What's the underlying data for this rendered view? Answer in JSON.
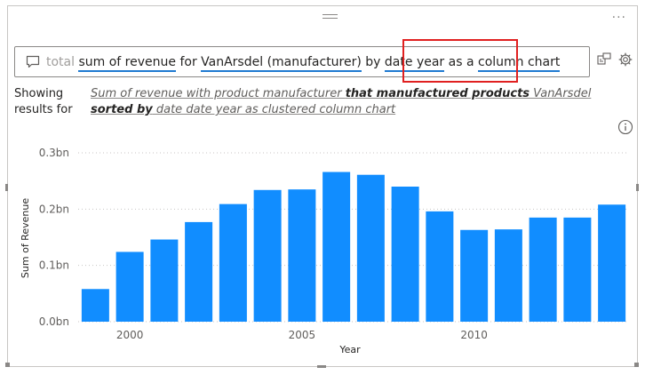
{
  "qa": {
    "segments": [
      {
        "text": "total",
        "style": "muted"
      },
      {
        "text": "sum of revenue",
        "style": "token"
      },
      {
        "text": "for",
        "style": "plain"
      },
      {
        "text": "VanArsdel (manufacturer)",
        "style": "token"
      },
      {
        "text": "by",
        "style": "plain"
      },
      {
        "text": "date year",
        "style": "token"
      },
      {
        "text": "as a",
        "style": "plain"
      },
      {
        "text": "column chart",
        "style": "token"
      }
    ]
  },
  "showing": {
    "label": "Showing results for",
    "restatement_parts": [
      {
        "text": "Sum of revenue with product manufacturer ",
        "bold": false
      },
      {
        "text": "that manufactured products",
        "bold": true
      },
      {
        "text": " VanArsdel ",
        "bold": false
      },
      {
        "text": "sorted by",
        "bold": true
      },
      {
        "text": " date date year as clustered column chart",
        "bold": false
      }
    ]
  },
  "icons": {
    "bubble": "chat-bubble-icon",
    "turn_into_visual": "turn-into-visual-icon",
    "settings": "gear-icon",
    "info": "info-icon",
    "more": "more-options-icon",
    "grip": "drag-grip-icon"
  },
  "chart_data": {
    "type": "bar",
    "x": [
      1999,
      2000,
      2001,
      2002,
      2003,
      2004,
      2005,
      2006,
      2007,
      2008,
      2009,
      2010,
      2011,
      2012,
      2013,
      2014
    ],
    "values": [
      0.058,
      0.124,
      0.146,
      0.177,
      0.209,
      0.234,
      0.235,
      0.266,
      0.261,
      0.24,
      0.196,
      0.163,
      0.164,
      0.185,
      0.185,
      0.208
    ],
    "x_ticks": [
      {
        "value": 2000,
        "label": "2000"
      },
      {
        "value": 2005,
        "label": "2005"
      },
      {
        "value": 2010,
        "label": "2010"
      }
    ],
    "y_ticks": [
      {
        "value": 0.0,
        "label": "0.0bn"
      },
      {
        "value": 0.1,
        "label": "0.1bn"
      },
      {
        "value": 0.2,
        "label": "0.2bn"
      },
      {
        "value": 0.3,
        "label": "0.3bn"
      }
    ],
    "xlabel": "Year",
    "ylabel": "Sum of Revenue",
    "ylim": [
      0,
      0.3
    ],
    "bar_color": "#118DFF",
    "grid": true
  }
}
